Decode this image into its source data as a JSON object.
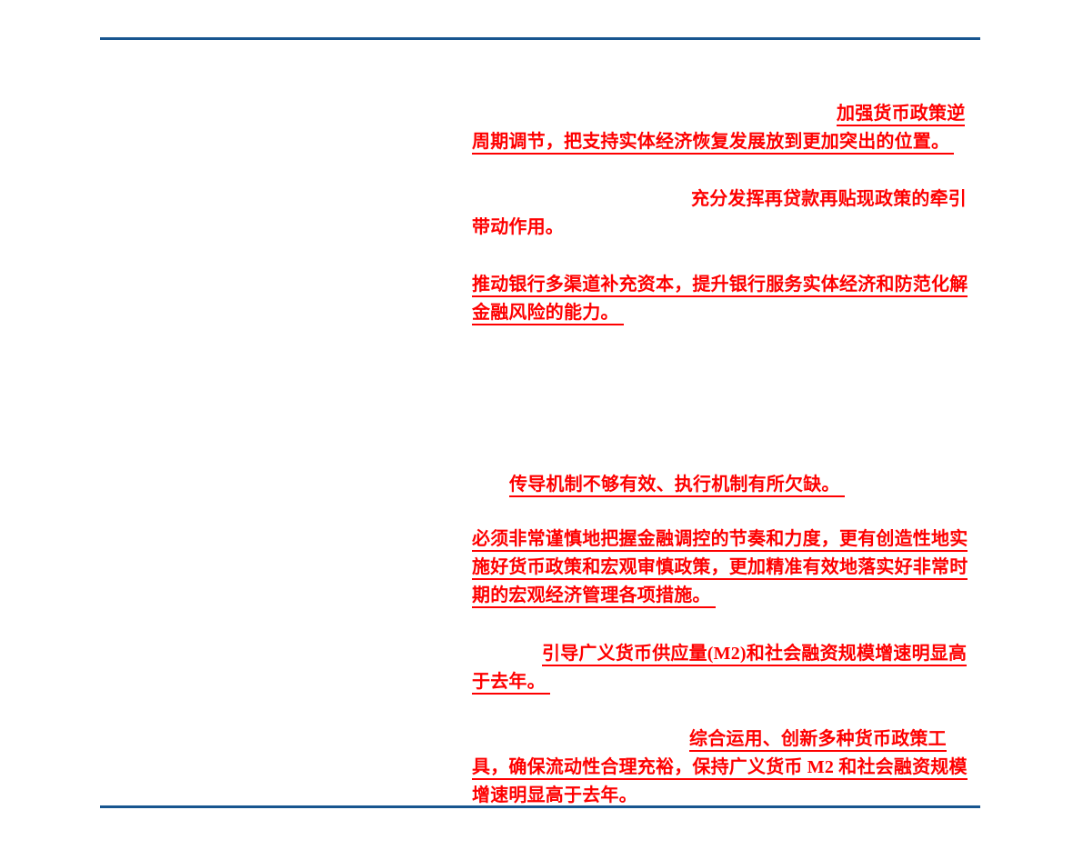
{
  "page": {
    "background_color": "#ffffff",
    "rule_color": "#17558f",
    "excerpt_text_color": "#fe0000"
  },
  "doc": {
    "lines": [
      {
        "text": "加强货币政策逆",
        "underline": true
      },
      {
        "text": "周期调节，把支持实体经济恢复发展放到更加突出的位置。 ",
        "underline": true
      },
      {
        "text": "充分发挥再贷款再贴现政策的牵引",
        "underline": false
      },
      {
        "text": "带动作用。",
        "underline": false
      },
      {
        "text": "推动银行多渠道补充资本，提升银行服务实体经济和防范化解",
        "underline": true
      },
      {
        "text": "金融风险的能力。 ",
        "underline": true
      },
      {
        "text": "传导机制不够有效、执行机制有所欠缺。 ",
        "underline": true
      },
      {
        "text": "必须非常谨慎地把握金融调控的节奏和力度，更有创造性地实",
        "underline": true
      },
      {
        "text": "施好货币政策和宏观审慎政策，更加精准有效地落实好非常时",
        "underline": true
      },
      {
        "text": "期的宏观经济管理各项措施。 ",
        "underline": true
      },
      {
        "text": "引导广义货币供应量(M2)和社会融资规模增速明显高",
        "underline": true
      },
      {
        "text": "于去年。 ",
        "underline": true
      },
      {
        "text": "综合运用、创新多种货币政策工",
        "underline": true
      },
      {
        "text": "具，确保流动性合理充裕，保持广义货币 M2 和社会融资规模",
        "underline": true
      },
      {
        "text": "增速明显高于去年。 ",
        "underline": true
      }
    ]
  }
}
